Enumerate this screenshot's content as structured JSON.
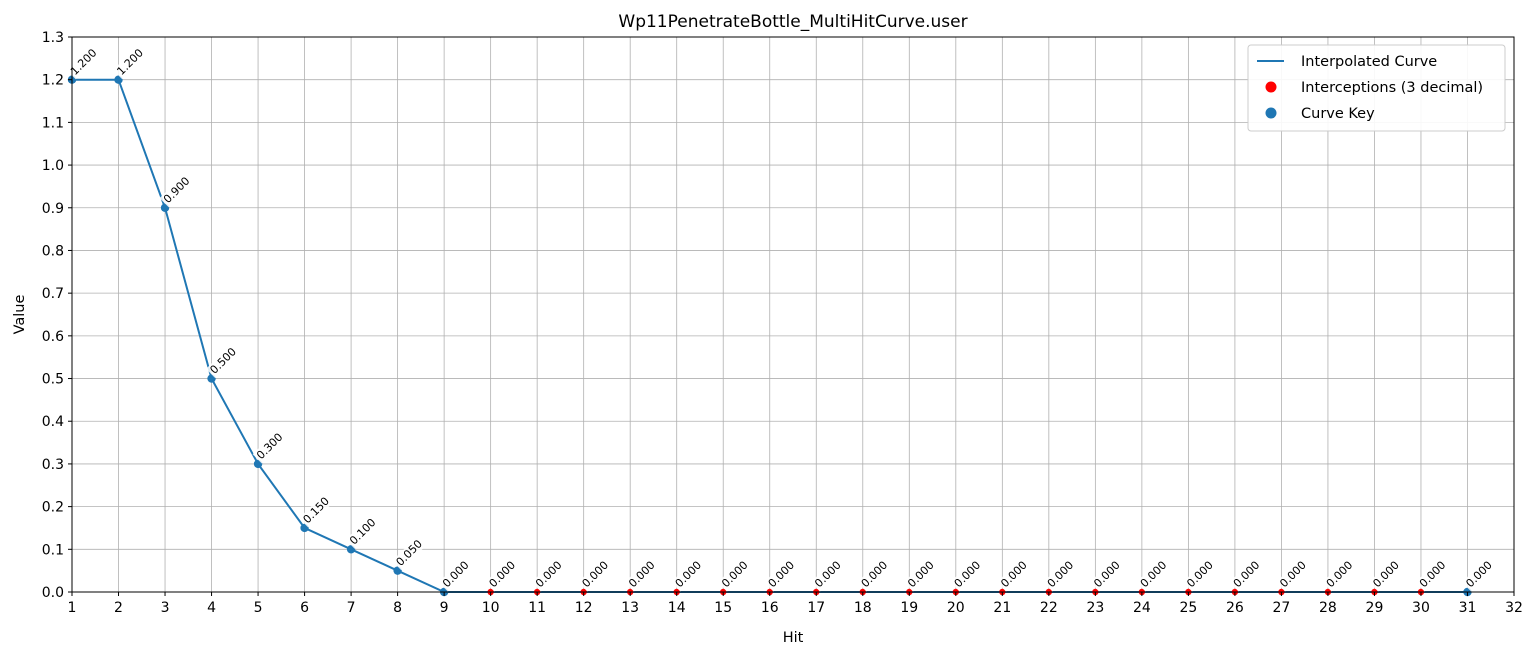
{
  "chart_data": {
    "type": "line",
    "title": "Wp11PenetrateBottle_MultiHitCurve.user",
    "xlabel": "Hit",
    "ylabel": "Value",
    "xlim": [
      1,
      32
    ],
    "ylim": [
      0,
      1.3
    ],
    "xticks": [
      1,
      2,
      3,
      4,
      5,
      6,
      7,
      8,
      9,
      10,
      11,
      12,
      13,
      14,
      15,
      16,
      17,
      18,
      19,
      20,
      21,
      22,
      23,
      24,
      25,
      26,
      27,
      28,
      29,
      30,
      31,
      32
    ],
    "yticks": [
      "0.0",
      "0.1",
      "0.2",
      "0.3",
      "0.4",
      "0.5",
      "0.6",
      "0.7",
      "0.8",
      "0.9",
      "1.0",
      "1.1",
      "1.2",
      "1.3"
    ],
    "grid": true,
    "legend_position": "top-right",
    "series": [
      {
        "name": "Interpolated Curve",
        "kind": "line",
        "color": "#1f77b4",
        "x": [
          1,
          2,
          3,
          4,
          5,
          6,
          7,
          8,
          9,
          10,
          11,
          12,
          13,
          14,
          15,
          16,
          17,
          18,
          19,
          20,
          21,
          22,
          23,
          24,
          25,
          26,
          27,
          28,
          29,
          30,
          31
        ],
        "y": [
          1.2,
          1.2,
          0.9,
          0.5,
          0.3,
          0.15,
          0.1,
          0.05,
          0,
          0,
          0,
          0,
          0,
          0,
          0,
          0,
          0,
          0,
          0,
          0,
          0,
          0,
          0,
          0,
          0,
          0,
          0,
          0,
          0,
          0,
          0
        ]
      },
      {
        "name": "Interceptions (3 decimal)",
        "kind": "scatter",
        "color": "#ff0000",
        "x": [
          1,
          2,
          3,
          4,
          5,
          6,
          7,
          8,
          9,
          10,
          11,
          12,
          13,
          14,
          15,
          16,
          17,
          18,
          19,
          20,
          21,
          22,
          23,
          24,
          25,
          26,
          27,
          28,
          29,
          30,
          31
        ],
        "y": [
          1.2,
          1.2,
          0.9,
          0.5,
          0.3,
          0.15,
          0.1,
          0.05,
          0,
          0,
          0,
          0,
          0,
          0,
          0,
          0,
          0,
          0,
          0,
          0,
          0,
          0,
          0,
          0,
          0,
          0,
          0,
          0,
          0,
          0,
          0
        ]
      },
      {
        "name": "Curve Key",
        "kind": "scatter",
        "color": "#1f77b4",
        "x": [
          1,
          2,
          3,
          4,
          5,
          6,
          7,
          8,
          9,
          31
        ],
        "y": [
          1.2,
          1.2,
          0.9,
          0.5,
          0.3,
          0.15,
          0.1,
          0.05,
          0,
          0
        ]
      }
    ],
    "data_labels": [
      {
        "x": 1,
        "y": 1.2,
        "text": "1.200"
      },
      {
        "x": 2,
        "y": 1.2,
        "text": "1.200"
      },
      {
        "x": 3,
        "y": 0.9,
        "text": "0.900"
      },
      {
        "x": 4,
        "y": 0.5,
        "text": "0.500"
      },
      {
        "x": 5,
        "y": 0.3,
        "text": "0.300"
      },
      {
        "x": 6,
        "y": 0.15,
        "text": "0.150"
      },
      {
        "x": 7,
        "y": 0.1,
        "text": "0.100"
      },
      {
        "x": 8,
        "y": 0.05,
        "text": "0.050"
      },
      {
        "x": 9,
        "y": 0,
        "text": "0.000"
      },
      {
        "x": 10,
        "y": 0,
        "text": "0.000"
      },
      {
        "x": 11,
        "y": 0,
        "text": "0.000"
      },
      {
        "x": 12,
        "y": 0,
        "text": "0.000"
      },
      {
        "x": 13,
        "y": 0,
        "text": "0.000"
      },
      {
        "x": 14,
        "y": 0,
        "text": "0.000"
      },
      {
        "x": 15,
        "y": 0,
        "text": "0.000"
      },
      {
        "x": 16,
        "y": 0,
        "text": "0.000"
      },
      {
        "x": 17,
        "y": 0,
        "text": "0.000"
      },
      {
        "x": 18,
        "y": 0,
        "text": "0.000"
      },
      {
        "x": 19,
        "y": 0,
        "text": "0.000"
      },
      {
        "x": 20,
        "y": 0,
        "text": "0.000"
      },
      {
        "x": 21,
        "y": 0,
        "text": "0.000"
      },
      {
        "x": 22,
        "y": 0,
        "text": "0.000"
      },
      {
        "x": 23,
        "y": 0,
        "text": "0.000"
      },
      {
        "x": 24,
        "y": 0,
        "text": "0.000"
      },
      {
        "x": 25,
        "y": 0,
        "text": "0.000"
      },
      {
        "x": 26,
        "y": 0,
        "text": "0.000"
      },
      {
        "x": 27,
        "y": 0,
        "text": "0.000"
      },
      {
        "x": 28,
        "y": 0,
        "text": "0.000"
      },
      {
        "x": 29,
        "y": 0,
        "text": "0.000"
      },
      {
        "x": 30,
        "y": 0,
        "text": "0.000"
      },
      {
        "x": 31,
        "y": 0,
        "text": "0.000"
      }
    ]
  }
}
